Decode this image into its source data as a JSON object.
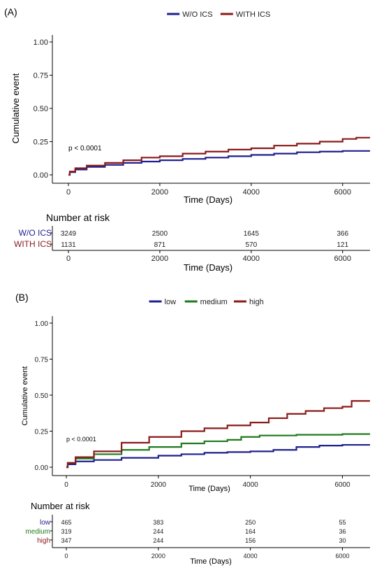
{
  "chart_data": [
    {
      "panel_label": "(A)",
      "type": "line",
      "step": true,
      "ylabel": "Cumulative event",
      "xlabel": "Time (Days)",
      "xlim": [
        0,
        6600
      ],
      "ylim": [
        0,
        1
      ],
      "x_ticks": [
        "0",
        "2000",
        "4000",
        "6000"
      ],
      "y_ticks": [
        "0.00",
        "0.25",
        "0.50",
        "0.75",
        "1.00"
      ],
      "legend_position": "top",
      "annotation": "p < 0.0001",
      "series": [
        {
          "name": "W/O ICS",
          "color": "#1f1f8f",
          "points": [
            [
              0,
              0
            ],
            [
              30,
              0.02
            ],
            [
              150,
              0.04
            ],
            [
              400,
              0.06
            ],
            [
              800,
              0.075
            ],
            [
              1200,
              0.09
            ],
            [
              1600,
              0.1
            ],
            [
              2000,
              0.11
            ],
            [
              2500,
              0.12
            ],
            [
              3000,
              0.13
            ],
            [
              3500,
              0.14
            ],
            [
              4000,
              0.15
            ],
            [
              4500,
              0.16
            ],
            [
              5000,
              0.17
            ],
            [
              5500,
              0.175
            ],
            [
              6000,
              0.18
            ],
            [
              6600,
              0.18
            ]
          ]
        },
        {
          "name": "WITH ICS",
          "color": "#8b1a1a",
          "points": [
            [
              0,
              0
            ],
            [
              30,
              0.025
            ],
            [
              150,
              0.05
            ],
            [
              400,
              0.07
            ],
            [
              800,
              0.09
            ],
            [
              1200,
              0.11
            ],
            [
              1600,
              0.13
            ],
            [
              2000,
              0.14
            ],
            [
              2500,
              0.16
            ],
            [
              3000,
              0.175
            ],
            [
              3500,
              0.19
            ],
            [
              4000,
              0.2
            ],
            [
              4500,
              0.22
            ],
            [
              5000,
              0.235
            ],
            [
              5500,
              0.25
            ],
            [
              6000,
              0.27
            ],
            [
              6300,
              0.28
            ],
            [
              6600,
              0.28
            ]
          ]
        }
      ],
      "risk_table": {
        "title": "Number at risk",
        "xlabel": "Time (Days)",
        "rows": [
          {
            "label": "W/O ICS",
            "color": "#1f1f8f",
            "values": [
              "3249",
              "2500",
              "1645",
              "366"
            ]
          },
          {
            "label": "WITH ICS",
            "color": "#8b1a1a",
            "values": [
              "1131",
              "871",
              "570",
              "121"
            ]
          }
        ]
      }
    },
    {
      "panel_label": "(B)",
      "type": "line",
      "step": true,
      "ylabel": "Cumulative event",
      "xlabel": "Time (Days)",
      "xlim": [
        0,
        6600
      ],
      "ylim": [
        0,
        1
      ],
      "x_ticks": [
        "0",
        "2000",
        "4000",
        "6000"
      ],
      "y_ticks": [
        "0.00",
        "0.25",
        "0.50",
        "0.75",
        "1.00"
      ],
      "legend_position": "top",
      "annotation": "p < 0.0001",
      "series": [
        {
          "name": "low",
          "color": "#1f1f8f",
          "points": [
            [
              0,
              0
            ],
            [
              30,
              0.02
            ],
            [
              200,
              0.04
            ],
            [
              600,
              0.05
            ],
            [
              1200,
              0.065
            ],
            [
              2000,
              0.08
            ],
            [
              2500,
              0.09
            ],
            [
              3000,
              0.1
            ],
            [
              3500,
              0.105
            ],
            [
              4000,
              0.11
            ],
            [
              4500,
              0.12
            ],
            [
              5000,
              0.14
            ],
            [
              5500,
              0.15
            ],
            [
              6000,
              0.155
            ],
            [
              6600,
              0.155
            ]
          ]
        },
        {
          "name": "medium",
          "color": "#1e7a1e",
          "points": [
            [
              0,
              0
            ],
            [
              30,
              0.03
            ],
            [
              200,
              0.06
            ],
            [
              600,
              0.09
            ],
            [
              1200,
              0.12
            ],
            [
              1800,
              0.14
            ],
            [
              2500,
              0.165
            ],
            [
              3000,
              0.18
            ],
            [
              3500,
              0.19
            ],
            [
              3800,
              0.21
            ],
            [
              4200,
              0.22
            ],
            [
              5000,
              0.225
            ],
            [
              6000,
              0.23
            ],
            [
              6600,
              0.23
            ]
          ]
        },
        {
          "name": "high",
          "color": "#8b1a1a",
          "points": [
            [
              0,
              0
            ],
            [
              30,
              0.03
            ],
            [
              200,
              0.07
            ],
            [
              600,
              0.11
            ],
            [
              1200,
              0.17
            ],
            [
              1800,
              0.21
            ],
            [
              2500,
              0.25
            ],
            [
              3000,
              0.27
            ],
            [
              3500,
              0.29
            ],
            [
              4000,
              0.31
            ],
            [
              4400,
              0.34
            ],
            [
              4800,
              0.37
            ],
            [
              5200,
              0.39
            ],
            [
              5600,
              0.41
            ],
            [
              6000,
              0.42
            ],
            [
              6200,
              0.46
            ],
            [
              6600,
              0.46
            ]
          ]
        }
      ],
      "risk_table": {
        "title": "Number at risk",
        "xlabel": "Time (Days)",
        "rows": [
          {
            "label": "low",
            "color": "#1f1f8f",
            "values": [
              "465",
              "383",
              "250",
              "55"
            ]
          },
          {
            "label": "medium",
            "color": "#1e7a1e",
            "values": [
              "319",
              "244",
              "164",
              "36"
            ]
          },
          {
            "label": "high",
            "color": "#8b1a1a",
            "values": [
              "347",
              "244",
              "156",
              "30"
            ]
          }
        ]
      }
    }
  ]
}
